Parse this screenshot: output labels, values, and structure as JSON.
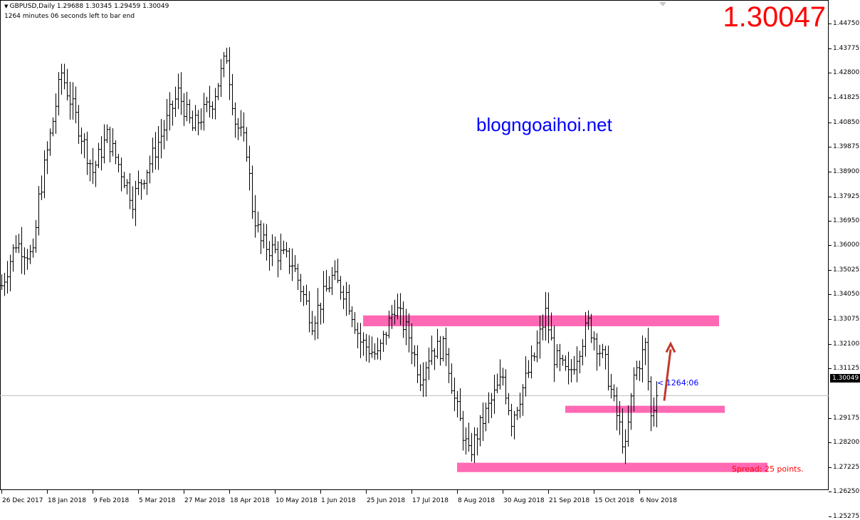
{
  "header": {
    "symbol_line": "GBPUSD,Daily  1.29688 1.30345 1.29459 1.30049",
    "timer_line": "1264 minutes 06 seconds left to bar end"
  },
  "big_price": "1.30047",
  "watermark": "blogngoaihoi.net",
  "spread": "Spread: 25 points.",
  "countdown": "< 1264:06",
  "current_price": "1.30049",
  "y_axis": [
    "1.44750",
    "1.43775",
    "1.42800",
    "1.41825",
    "1.40850",
    "1.39875",
    "1.38900",
    "1.37925",
    "1.36950",
    "1.36000",
    "1.35025",
    "1.34050",
    "1.33075",
    "1.32100",
    "1.31125",
    "1.29175",
    "1.28200",
    "1.27225",
    "1.26250",
    "1.25275"
  ],
  "x_axis": [
    "26 Dec 2017",
    "18 Jan 2018",
    "9 Feb 2018",
    "5 Mar 2018",
    "27 Mar 2018",
    "18 Apr 2018",
    "10 May 2018",
    "1 Jun 2018",
    "25 Jun 2018",
    "17 Jul 2018",
    "8 Aug 2018",
    "30 Aug 2018",
    "21 Sep 2018",
    "15 Oct 2018",
    "6 Nov 2018"
  ],
  "colors": {
    "zone": "#ff69b4",
    "arrow": "#c0392b",
    "bars": "#000000",
    "watermark": "#0000ff",
    "big_price": "#ff0000"
  },
  "chart_data": {
    "type": "ohlc",
    "symbol": "GBPUSD",
    "timeframe": "Daily",
    "ylim": [
      1.2495,
      1.4524
    ],
    "price_path_bar_index_close": [
      [
        0,
        1.344
      ],
      [
        5,
        1.361
      ],
      [
        11,
        1.355
      ],
      [
        13,
        1.378
      ],
      [
        21,
        1.428
      ],
      [
        25,
        1.414
      ],
      [
        32,
        1.389
      ],
      [
        37,
        1.403
      ],
      [
        46,
        1.378
      ],
      [
        53,
        1.395
      ],
      [
        62,
        1.42
      ],
      [
        67,
        1.406
      ],
      [
        74,
        1.417
      ],
      [
        79,
        1.435
      ],
      [
        82,
        1.409
      ],
      [
        86,
        1.398
      ],
      [
        88,
        1.375
      ],
      [
        91,
        1.361
      ],
      [
        102,
        1.353
      ],
      [
        109,
        1.33
      ],
      [
        116,
        1.347
      ],
      [
        121,
        1.341
      ],
      [
        126,
        1.322
      ],
      [
        132,
        1.316
      ],
      [
        138,
        1.336
      ],
      [
        143,
        1.324
      ],
      [
        147,
        1.308
      ],
      [
        151,
        1.319
      ],
      [
        156,
        1.319
      ],
      [
        159,
        1.299
      ],
      [
        164,
        1.277
      ],
      [
        169,
        1.291
      ],
      [
        176,
        1.308
      ],
      [
        179,
        1.291
      ],
      [
        187,
        1.316
      ],
      [
        191,
        1.333
      ],
      [
        194,
        1.316
      ],
      [
        199,
        1.308
      ],
      [
        206,
        1.329
      ],
      [
        212,
        1.313
      ],
      [
        215,
        1.297
      ],
      [
        219,
        1.279
      ],
      [
        222,
        1.308
      ],
      [
        226,
        1.32
      ],
      [
        228,
        1.292
      ],
      [
        230,
        1.3005
      ]
    ],
    "zones": [
      {
        "from": "25 Jun 2018",
        "to_bar": 252,
        "from_bar": 127,
        "top": 1.3322,
        "bottom": 1.3279
      },
      {
        "from_bar": 198,
        "to_bar": 254,
        "top": 1.2965,
        "bottom": 1.2937
      },
      {
        "from_bar": 160,
        "to_bar": 269,
        "top": 1.274,
        "bottom": 1.2703
      }
    ],
    "arrow": {
      "from_bar": 232,
      "from_price": 1.2985,
      "to_bar": 234,
      "to_price": 1.321
    }
  }
}
